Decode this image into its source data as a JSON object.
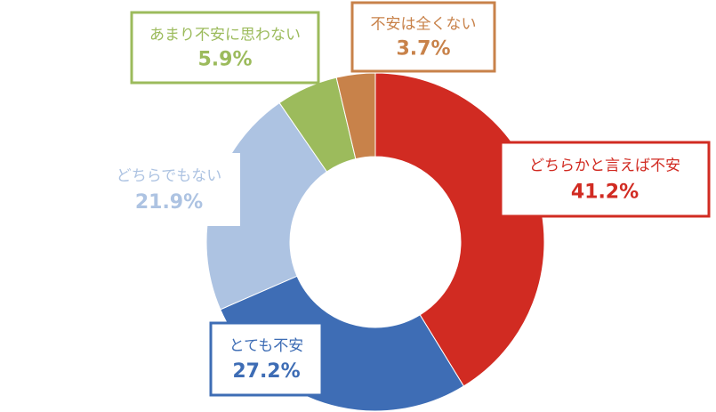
{
  "chart_data": {
    "type": "donut",
    "categories": [
      "どちらかと言えば不安",
      "とても不安",
      "どちらでもない",
      "あまり不安に思わない",
      "不安は全くない"
    ],
    "values": [
      41.2,
      27.2,
      21.9,
      5.9,
      3.7
    ],
    "value_labels": [
      "41.2%",
      "27.2%",
      "21.9%",
      "5.9%",
      "3.7%"
    ],
    "colors": [
      "#d12b22",
      "#3e6db5",
      "#adc3e2",
      "#9cbb5c",
      "#c8824a"
    ]
  }
}
